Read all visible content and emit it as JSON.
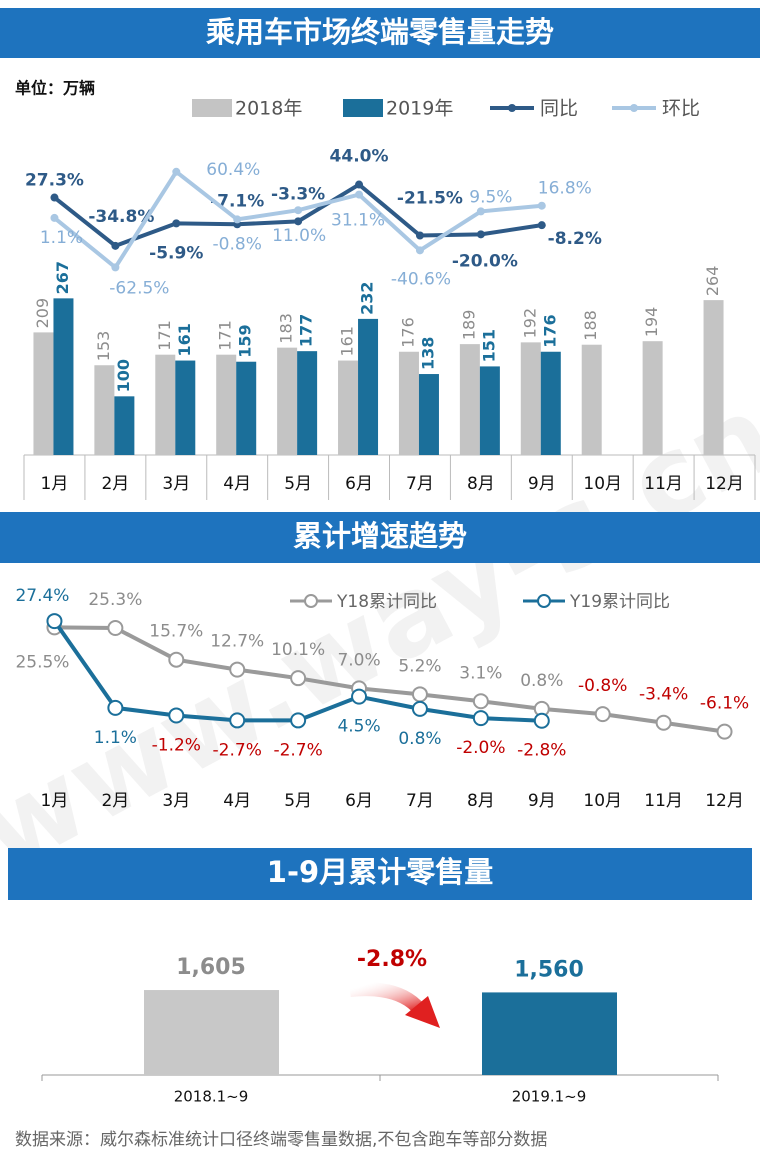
{
  "watermark": "www.way-s.cn",
  "footer": "数据来源：威尔森标准统计口径终端零售量数据,不包含跑车等部分数据",
  "chart_data": [
    {
      "type": "bar_line",
      "title": "乘用车市场终端零售量走势",
      "unit": "单位：万辆",
      "categories": [
        "1月",
        "2月",
        "3月",
        "4月",
        "5月",
        "6月",
        "7月",
        "8月",
        "9月",
        "10月",
        "11月",
        "12月"
      ],
      "series": [
        {
          "name": "2018年",
          "type": "bar",
          "color": "#c4c4c4",
          "label_color": "#8c8c8c",
          "values": [
            209,
            153,
            171,
            171,
            183,
            161,
            176,
            189,
            192,
            188,
            194,
            264
          ]
        },
        {
          "name": "2019年",
          "type": "bar",
          "color": "#1b6f9a",
          "values": [
            267,
            100,
            161,
            159,
            177,
            232,
            138,
            151,
            176,
            null,
            null,
            null
          ]
        },
        {
          "name": "同比",
          "type": "line",
          "axis": "y2",
          "color": "#2e5a87",
          "values": [
            27.3,
            -34.8,
            -5.9,
            -7.1,
            -3.3,
            44.0,
            -21.5,
            -20.0,
            -8.2,
            null,
            null,
            null
          ],
          "value_labels": [
            "27.3%",
            "-34.8%",
            "-5.9%",
            "-7.1%",
            "-3.3%",
            "44.0%",
            "-21.5%",
            "-20.0%",
            "-8.2%",
            null,
            null,
            null
          ]
        },
        {
          "name": "环比",
          "type": "line",
          "axis": "y2",
          "color": "#a9c7e3",
          "label_color": "#86aed6",
          "values": [
            1.1,
            -62.5,
            60.4,
            -0.8,
            11.0,
            31.1,
            -40.6,
            9.5,
            16.8,
            null,
            null,
            null
          ],
          "value_labels": [
            "1.1%",
            "-62.5%",
            "60.4%",
            "-0.8%",
            "11.0%",
            "31.1%",
            "-40.6%",
            "9.5%",
            "16.8%",
            null,
            null,
            null
          ]
        }
      ],
      "ylim": [
        0,
        300
      ],
      "y2lim": [
        -80,
        100
      ]
    },
    {
      "type": "line",
      "title": "累计增速趋势",
      "categories": [
        "1月",
        "2月",
        "3月",
        "4月",
        "5月",
        "6月",
        "7月",
        "8月",
        "9月",
        "10月",
        "11月",
        "12月"
      ],
      "series": [
        {
          "name": "Y18累计同比",
          "color": "#9a9a9a",
          "label_color": "#8c8c8c",
          "values": [
            25.5,
            25.3,
            15.7,
            12.7,
            10.1,
            7.0,
            5.2,
            3.1,
            0.8,
            -0.8,
            -3.4,
            -6.1
          ],
          "value_labels": [
            "25.5%",
            "25.3%",
            "15.7%",
            "12.7%",
            "10.1%",
            "7.0%",
            "5.2%",
            "3.1%",
            "0.8%",
            "-0.8%",
            "-3.4%",
            "-6.1%"
          ]
        },
        {
          "name": "Y19累计同比",
          "color": "#1b6f9a",
          "values": [
            27.4,
            1.1,
            -1.2,
            -2.7,
            -2.7,
            4.5,
            0.8,
            -2.0,
            -2.8,
            null,
            null,
            null
          ],
          "value_labels": [
            "27.4%",
            "1.1%",
            "-1.2%",
            "-2.7%",
            "-2.7%",
            "4.5%",
            "0.8%",
            "-2.0%",
            "-2.8%",
            null,
            null,
            null
          ]
        }
      ],
      "ylim": [
        -10,
        30
      ],
      "negative_label_color": "#c00000"
    },
    {
      "type": "bar",
      "title": "1-9月累计零售量",
      "categories": [
        "2018.1~9",
        "2019.1~9"
      ],
      "values": [
        1605,
        1560
      ],
      "value_labels": [
        "1,605",
        "1,560"
      ],
      "colors": [
        "#c8c8c8",
        "#1b6f9a"
      ],
      "annotation": "-2.8%",
      "annotation_color": "#c00000",
      "ylim": [
        0,
        1700
      ]
    }
  ]
}
